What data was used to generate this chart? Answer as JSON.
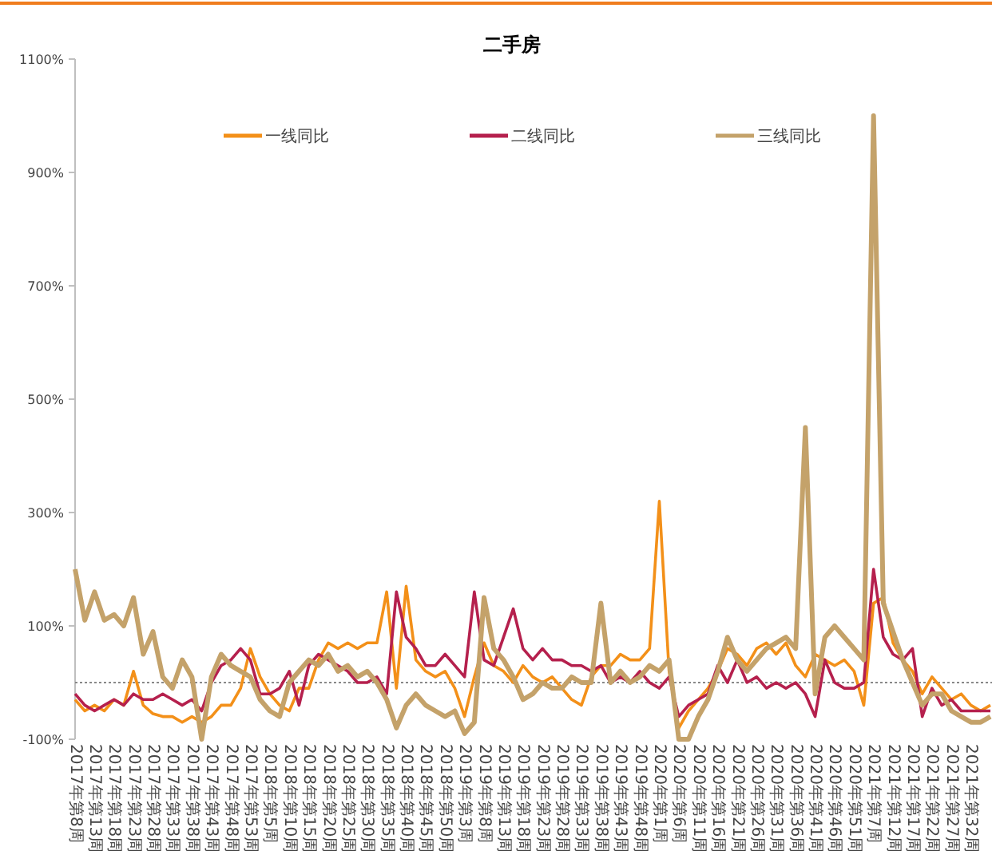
{
  "chart_data": {
    "type": "line",
    "title": "二手房",
    "categories": [
      "2017年第8周",
      null,
      "2017年第13周",
      null,
      "2017年第18周",
      null,
      "2017年第23周",
      null,
      "2017年第28周",
      null,
      "2017年第33周",
      null,
      "2017年第38周",
      null,
      "2017年第43周",
      null,
      "2017年第48周",
      null,
      "2017年第53周",
      null,
      "2018年第5周",
      null,
      "2018年第10周",
      null,
      "2018年第15周",
      null,
      "2018年第20周",
      null,
      "2018年第25周",
      null,
      "2018年第30周",
      null,
      "2018年第35周",
      null,
      "2018年第40周",
      null,
      "2018年第45周",
      null,
      "2018年第50周",
      null,
      "2019年第3周",
      null,
      "2019年第8周",
      null,
      "2019年第13周",
      null,
      "2019年第18周",
      null,
      "2019年第23周",
      null,
      "2019年第28周",
      null,
      "2019年第33周",
      null,
      "2019年第38周",
      null,
      "2019年第43周",
      null,
      "2019年第48周",
      null,
      "2020年第1周",
      null,
      "2020年第6周",
      null,
      "2020年第11周",
      null,
      "2020年第16周",
      null,
      "2020年第21周",
      null,
      "2020年第26周",
      null,
      "2020年第31周",
      null,
      "2020年第36周",
      null,
      "2020年第41周",
      null,
      "2020年第46周",
      null,
      "2020年第51周",
      null,
      "2021年第7周",
      null,
      "2021年第12周",
      null,
      "2021年第17周",
      null,
      "2021年第22周",
      null,
      "2021年第27周",
      null,
      "2021年第32周",
      null,
      null
    ],
    "series": [
      {
        "name": "一线同比",
        "color": "#f39019",
        "values": [
          -30,
          -50,
          -40,
          -50,
          -30,
          -40,
          20,
          -40,
          -55,
          -60,
          -60,
          -70,
          -60,
          -70,
          -60,
          -40,
          -40,
          -10,
          60,
          10,
          -20,
          -40,
          -50,
          -10,
          -10,
          40,
          70,
          60,
          70,
          60,
          70,
          70,
          160,
          -10,
          170,
          40,
          20,
          10,
          20,
          -10,
          -60,
          10,
          70,
          30,
          20,
          0,
          30,
          10,
          0,
          10,
          -10,
          -30,
          -40,
          10,
          30,
          30,
          50,
          40,
          40,
          60,
          320,
          20,
          -80,
          -50,
          -30,
          -10,
          20,
          60,
          50,
          30,
          60,
          70,
          50,
          70,
          30,
          10,
          50,
          40,
          30,
          40,
          20,
          -40,
          140,
          150,
          70,
          40,
          20,
          -20,
          10,
          -10,
          -30,
          -20,
          -40,
          -50,
          -40
        ]
      },
      {
        "name": "二线同比",
        "color": "#b5204d",
        "values": [
          -20,
          -40,
          -50,
          -40,
          -30,
          -40,
          -20,
          -30,
          -30,
          -20,
          -30,
          -40,
          -30,
          -50,
          0,
          30,
          40,
          60,
          40,
          -20,
          -20,
          -10,
          20,
          -40,
          30,
          50,
          40,
          30,
          20,
          0,
          0,
          10,
          -20,
          160,
          80,
          60,
          30,
          30,
          50,
          30,
          10,
          160,
          40,
          30,
          80,
          130,
          60,
          40,
          60,
          40,
          40,
          30,
          30,
          20,
          30,
          0,
          10,
          0,
          20,
          0,
          -10,
          10,
          -60,
          -40,
          -30,
          -20,
          30,
          0,
          40,
          0,
          10,
          -10,
          0,
          -10,
          0,
          -20,
          -60,
          40,
          0,
          -10,
          -10,
          0,
          200,
          80,
          50,
          40,
          60,
          -60,
          -10,
          -40,
          -30,
          -50,
          -50,
          -50,
          -50
        ]
      },
      {
        "name": "三线同比",
        "color": "#c4a26a",
        "values": [
          200,
          110,
          160,
          110,
          120,
          100,
          150,
          50,
          90,
          10,
          -10,
          40,
          10,
          -100,
          10,
          50,
          30,
          20,
          10,
          -30,
          -50,
          -60,
          0,
          20,
          40,
          30,
          50,
          20,
          30,
          10,
          20,
          0,
          -30,
          -80,
          -40,
          -20,
          -40,
          -50,
          -60,
          -50,
          -90,
          -70,
          150,
          60,
          40,
          10,
          -30,
          -20,
          0,
          -10,
          -10,
          10,
          0,
          0,
          140,
          0,
          20,
          0,
          10,
          30,
          20,
          40,
          -100,
          -100,
          -60,
          -30,
          20,
          80,
          40,
          20,
          40,
          60,
          70,
          80,
          60,
          450,
          -20,
          80,
          100,
          80,
          60,
          40,
          1000,
          140,
          90,
          40,
          0,
          -40,
          -20,
          -20,
          -50,
          -60,
          -70,
          -70,
          -60
        ]
      }
    ],
    "ylim": [
      -100,
      1100
    ],
    "yticks": [
      {
        "value": -100,
        "label": "-100%"
      },
      {
        "value": 100,
        "label": "100%"
      },
      {
        "value": 300,
        "label": "300%"
      },
      {
        "value": 500,
        "label": "500%"
      },
      {
        "value": 700,
        "label": "700%"
      },
      {
        "value": 900,
        "label": "900%"
      },
      {
        "value": 1100,
        "label": "1100%"
      }
    ],
    "ref_lines": [
      {
        "axis": "y",
        "value": 0,
        "color": "#888888",
        "line_style": "dotted"
      }
    ],
    "legend": "top",
    "grid": false,
    "line_style": "solid",
    "marker": "none"
  }
}
